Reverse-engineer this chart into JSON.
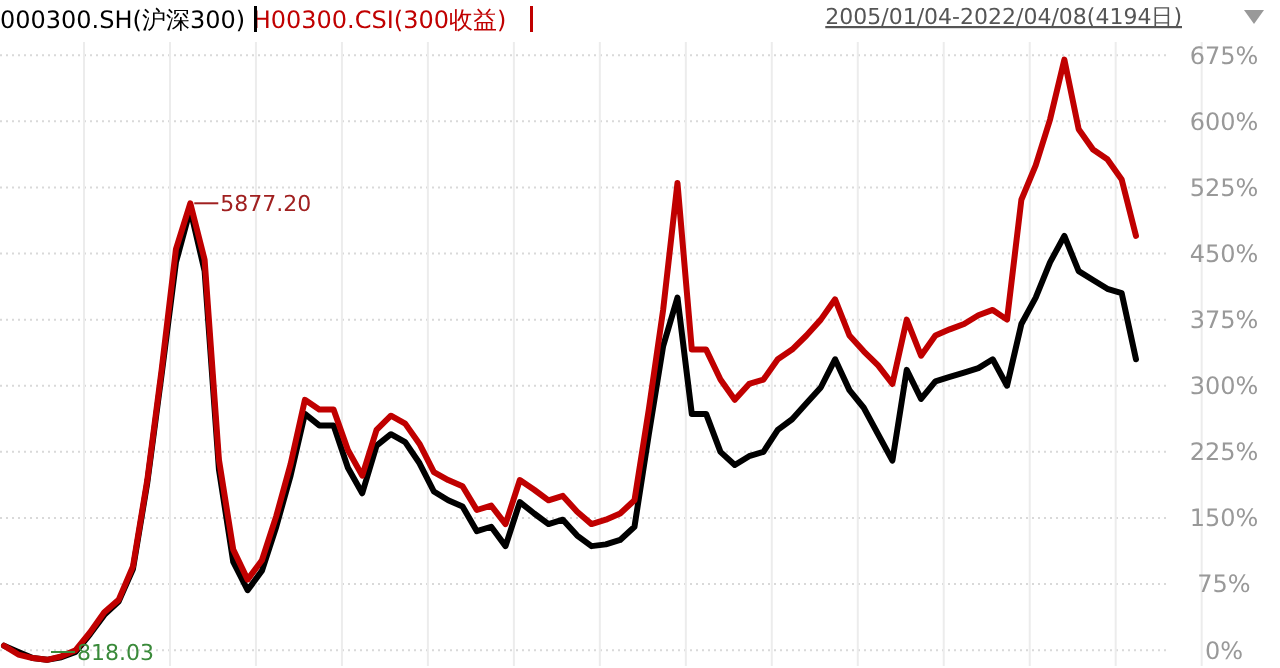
{
  "chart_data": {
    "type": "line",
    "subtitle": "2005/01/04-2022/04/08(4194日)",
    "categories": [
      null,
      null,
      null,
      null,
      null,
      null,
      null,
      null,
      null,
      null,
      null,
      null,
      null,
      null,
      null,
      null,
      null,
      null,
      null,
      null,
      null,
      null,
      null,
      null,
      null,
      null,
      null,
      null,
      null,
      null,
      null,
      null,
      null,
      null,
      null,
      null,
      null,
      null,
      null,
      null,
      null,
      null,
      null,
      null,
      null,
      null,
      null,
      null,
      null,
      null,
      null,
      null,
      null,
      null,
      null,
      null,
      null,
      null,
      null,
      null,
      null,
      null,
      null,
      null,
      null,
      null,
      null,
      null,
      null,
      null,
      null,
      null,
      null,
      null,
      null,
      null,
      null,
      null,
      null,
      null
    ],
    "series": [
      {
        "name": "000300.SH(沪深300)",
        "color": "#000000",
        "values": [
          5,
          -2,
          -9,
          -11,
          -8,
          -2,
          18,
          40,
          55,
          92,
          190,
          313,
          440,
          500,
          430,
          205,
          100,
          68,
          90,
          140,
          198,
          268,
          255,
          255,
          207,
          178,
          232,
          245,
          236,
          212,
          180,
          170,
          163,
          135,
          140,
          118,
          168,
          155,
          143,
          148,
          130,
          118,
          120,
          125,
          140,
          245,
          345,
          400,
          268,
          268,
          225,
          210,
          220,
          225,
          250,
          262,
          280,
          298,
          330,
          295,
          275,
          245,
          215,
          318,
          285,
          305,
          310,
          315,
          320,
          330,
          300,
          370,
          400,
          440,
          470,
          430,
          420,
          410,
          405,
          330
        ]
      },
      {
        "name": "H00300.CSI(300收益)",
        "color": "#c00000",
        "values": [
          5,
          -5,
          -9,
          -11,
          -7,
          0,
          20,
          43,
          57,
          95,
          193,
          318,
          455,
          507,
          443,
          216,
          114,
          80,
          102,
          152,
          211,
          284,
          273,
          273,
          227,
          198,
          250,
          266,
          257,
          234,
          202,
          193,
          186,
          159,
          164,
          143,
          193,
          182,
          170,
          175,
          157,
          143,
          148,
          155,
          170,
          273,
          386,
          530,
          341,
          341,
          307,
          284,
          302,
          307,
          330,
          341,
          357,
          375,
          398,
          357,
          339,
          323,
          302,
          375,
          334,
          357,
          364,
          370,
          380,
          386,
          375,
          511,
          550,
          602,
          670,
          591,
          568,
          557,
          534,
          470
        ]
      }
    ],
    "ylim": [
      -18,
      690
    ],
    "yticks": [
      {
        "value": 0,
        "label": "0%"
      },
      {
        "value": 75,
        "label": "75%"
      },
      {
        "value": 150,
        "label": "150%"
      },
      {
        "value": 225,
        "label": "225%"
      },
      {
        "value": 300,
        "label": "300%"
      },
      {
        "value": 375,
        "label": "375%"
      },
      {
        "value": 450,
        "label": "450%"
      },
      {
        "value": 525,
        "label": "525%"
      },
      {
        "value": 600,
        "label": "600%"
      },
      {
        "value": 675,
        "label": "675%"
      }
    ],
    "grid": true,
    "legend": "top left",
    "tick_labels": "y",
    "annotations": [
      "5877.20",
      "818.03"
    ]
  }
}
